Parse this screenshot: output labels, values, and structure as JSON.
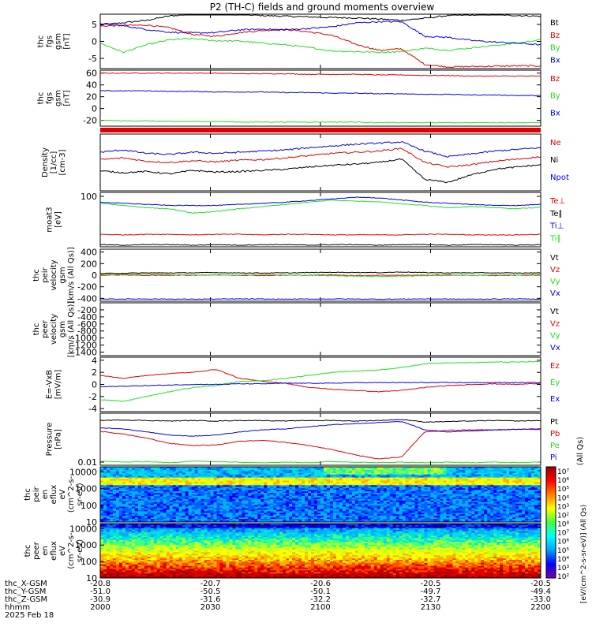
{
  "title": "P2 (TH-C) fields and ground moments overview",
  "colors": {
    "black": "#000000",
    "red": "#e00000",
    "green": "#22dd22",
    "blue": "#0000ee"
  },
  "chart_data": [
    {
      "id": "p1",
      "type": "line",
      "ylabel": [
        "thc",
        "fgs",
        "gsm",
        "[nT]"
      ],
      "yticks": [
        "5",
        "0",
        "-5"
      ],
      "ylim": [
        -8,
        8
      ],
      "series": [
        {
          "name": "Bt",
          "color": "black",
          "values": [
            4.8,
            5.5,
            6.2,
            7.5,
            8.0,
            8.1,
            7.9,
            7.6,
            7.4,
            7.2,
            7.0,
            6.9,
            6.6,
            6.2,
            6.8,
            7.6,
            7.8,
            7.9,
            7.6,
            7.4
          ]
        },
        {
          "name": "Bz",
          "color": "red",
          "values": [
            4.5,
            4.7,
            4.8,
            4.0,
            2.0,
            1.5,
            2.6,
            3.2,
            3.5,
            2.8,
            1.8,
            -0.8,
            -2.6,
            -2.2,
            -6.8,
            -7.5,
            -7.4,
            -7.3,
            -7.2,
            -7.2
          ]
        },
        {
          "name": "By",
          "color": "green",
          "values": [
            -0.5,
            -3.2,
            -1.0,
            0.5,
            0.8,
            0.2,
            0.1,
            -0.5,
            -1.0,
            -1.8,
            -2.8,
            -3.0,
            -3.2,
            -3.0,
            -2.0,
            -2.6,
            -1.9,
            -1.2,
            -0.5,
            0.5
          ]
        },
        {
          "name": "Bx",
          "color": "blue",
          "values": [
            5.3,
            4.6,
            3.5,
            2.7,
            2.5,
            2.6,
            3.4,
            3.6,
            3.4,
            3.8,
            4.3,
            5.4,
            5.8,
            5.8,
            1.5,
            1.2,
            0.3,
            -0.2,
            -0.5,
            -1.0
          ]
        }
      ]
    },
    {
      "id": "p2",
      "type": "line",
      "ylabel": [
        "thc",
        "fgs",
        "gsm",
        "[nT]"
      ],
      "yticks": [
        "60",
        "40",
        "20",
        "0",
        "-20"
      ],
      "ylim": [
        -30,
        65
      ],
      "series": [
        {
          "name": "Bz",
          "color": "red",
          "values": [
            60,
            60,
            60,
            60,
            60,
            60,
            59,
            59,
            59,
            58,
            58,
            58,
            57,
            57,
            56,
            56,
            55,
            55,
            55,
            55
          ]
        },
        {
          "name": "By",
          "color": "green",
          "values": [
            -20,
            -21,
            -21,
            -22,
            -22,
            -22,
            -23,
            -23,
            -23,
            -23,
            -23,
            -23,
            -24,
            -24,
            -24,
            -24,
            -24,
            -24,
            -24,
            -24
          ]
        },
        {
          "name": "Bx",
          "color": "blue",
          "values": [
            30,
            30,
            30,
            29,
            29,
            28,
            28,
            28,
            27,
            27,
            26,
            26,
            25,
            25,
            24,
            24,
            23,
            23,
            22,
            22
          ]
        }
      ]
    },
    {
      "id": "p3",
      "type": "line",
      "ylabel": [
        "Density",
        "[1/cc]",
        "[cm-3]"
      ],
      "yticks": [],
      "ylim": [
        0,
        10
      ],
      "series": [
        {
          "name": "Ne",
          "color": "red",
          "values": [
            5.5,
            5.8,
            5.2,
            5.0,
            5.3,
            5.1,
            5.4,
            5.5,
            5.8,
            6.2,
            6.6,
            6.8,
            7.0,
            7.5,
            5.0,
            4.2,
            4.6,
            5.2,
            5.6,
            6.0
          ]
        },
        {
          "name": "Ni",
          "color": "black",
          "values": [
            3.5,
            3.2,
            3.4,
            3.0,
            3.6,
            3.3,
            3.4,
            3.6,
            3.8,
            4.2,
            4.5,
            4.7,
            5.0,
            5.6,
            2.0,
            1.5,
            2.8,
            3.8,
            4.2,
            4.6
          ]
        },
        {
          "name": "Npot",
          "color": "blue",
          "values": [
            6.8,
            7.2,
            6.6,
            6.4,
            6.8,
            6.6,
            6.8,
            7.0,
            7.2,
            7.6,
            7.9,
            8.2,
            8.4,
            8.6,
            7.0,
            6.0,
            6.5,
            7.0,
            7.3,
            7.6
          ]
        }
      ]
    },
    {
      "id": "p4",
      "type": "line",
      "ylabel": [
        "moat3",
        "[eV]"
      ],
      "yticks": [
        "100"
      ],
      "ylim": [
        0,
        10
      ],
      "series": [
        {
          "name": "Te⊥",
          "color": "red",
          "values": [
            2.3,
            2.2,
            2.3,
            2.3,
            2.2,
            2.3,
            2.3,
            2.2,
            2.3,
            2.3,
            2.2,
            2.2,
            2.2,
            2.2,
            2.3,
            2.3,
            2.2,
            2.2,
            2.2,
            2.3
          ]
        },
        {
          "name": "Te∥",
          "color": "black",
          "values": [
            0.4,
            0.3,
            0.4,
            0.4,
            0.3,
            0.4,
            0.3,
            0.4,
            0.4,
            0.3,
            0.4,
            0.4,
            0.3,
            0.4,
            0.4,
            0.3,
            0.4,
            0.4,
            0.3,
            0.4
          ]
        },
        {
          "name": "Ti⊥",
          "color": "blue",
          "values": [
            8.2,
            8.0,
            7.8,
            7.6,
            7.6,
            7.6,
            7.8,
            8.0,
            8.2,
            8.5,
            8.8,
            9.1,
            9.0,
            8.6,
            8.2,
            8.0,
            7.8,
            7.6,
            7.6,
            7.8
          ]
        },
        {
          "name": "Ti∥",
          "color": "green",
          "values": [
            8.0,
            7.6,
            7.2,
            7.0,
            6.2,
            6.5,
            7.0,
            7.4,
            7.8,
            8.2,
            8.6,
            8.4,
            8.3,
            7.9,
            7.6,
            7.2,
            7.4,
            7.2,
            7.0,
            7.3
          ]
        }
      ]
    },
    {
      "id": "p5",
      "type": "line",
      "ylabel": [
        "thc",
        "peir",
        "velocity",
        "gsm",
        "[km/s (All Qs)]"
      ],
      "yticks": [
        "400",
        "200",
        "0",
        "-200",
        "-400"
      ],
      "ylim": [
        -450,
        450
      ],
      "series": [
        {
          "name": "Vt",
          "color": "black",
          "values": [
            30,
            35,
            40,
            40,
            42,
            45,
            40,
            38,
            40,
            45,
            50,
            48,
            45,
            55,
            45,
            40,
            42,
            40,
            38,
            40
          ]
        },
        {
          "name": "Vz",
          "color": "red",
          "values": [
            0,
            5,
            -5,
            0,
            0,
            5,
            0,
            -5,
            0,
            0,
            5,
            -5,
            0,
            0,
            0,
            5,
            0,
            -5,
            0,
            0
          ]
        },
        {
          "name": "Vy",
          "color": "green",
          "values": [
            10,
            15,
            20,
            10,
            5,
            0,
            5,
            10,
            5,
            0,
            -10,
            -15,
            -20,
            -15,
            -10,
            -5,
            0,
            5,
            5,
            10
          ]
        },
        {
          "name": "Vx",
          "color": "blue",
          "values": [
            -410,
            -412,
            -410,
            -412,
            -414,
            -412,
            -410,
            -412,
            -414,
            -412,
            -410,
            -412,
            -414,
            -412,
            -410,
            -412,
            -414,
            -412,
            -410,
            -412
          ]
        }
      ]
    },
    {
      "id": "p6",
      "type": "line",
      "ylabel": [
        "thc",
        "peer",
        "velocity",
        "gsm",
        "[km/s (All Qs)]"
      ],
      "yticks": [
        "-200",
        "-400",
        "-600",
        "-800",
        "-1000",
        "-1200",
        "-1400"
      ],
      "ylim": [
        -1500,
        0
      ],
      "series": [
        {
          "name": "Vt",
          "color": "black",
          "values": []
        },
        {
          "name": "Vz",
          "color": "red",
          "values": []
        },
        {
          "name": "Vy",
          "color": "green",
          "values": []
        },
        {
          "name": "Vx",
          "color": "blue",
          "values": []
        }
      ]
    },
    {
      "id": "p7",
      "type": "line",
      "ylabel": [
        "E=-VxB",
        "[mV/m]"
      ],
      "yticks": [
        "4",
        "2",
        "0",
        "-2",
        "-4"
      ],
      "ylim": [
        -4.5,
        4.5
      ],
      "series": [
        {
          "name": "Ez",
          "color": "red",
          "values": [
            1.5,
            1.0,
            1.5,
            1.8,
            2.0,
            2.5,
            1.0,
            0.5,
            0.2,
            -0.5,
            -0.8,
            -1.0,
            -1.2,
            -1.0,
            -0.5,
            -0.2,
            0.0,
            0.1,
            0.0,
            0.2
          ]
        },
        {
          "name": "Ey",
          "color": "green",
          "values": [
            -2.5,
            -2.8,
            -2.0,
            -1.2,
            -0.5,
            -0.2,
            0.5,
            0.6,
            1.0,
            1.5,
            2.0,
            2.2,
            2.4,
            2.8,
            3.4,
            3.6,
            3.6,
            3.7,
            3.7,
            3.8
          ]
        },
        {
          "name": "Ex",
          "color": "blue",
          "values": [
            -0.4,
            -0.3,
            -0.2,
            -0.1,
            0.0,
            0.0,
            0.1,
            0.1,
            0.2,
            0.2,
            0.2,
            0.3,
            0.3,
            0.3,
            0.3,
            0.3,
            0.3,
            0.3,
            0.3,
            0.3
          ]
        }
      ]
    },
    {
      "id": "p8",
      "type": "line",
      "ylabel": [
        "Pressure",
        "[nPa]"
      ],
      "yticks": [
        "0.01"
      ],
      "ylim": [
        0,
        10
      ],
      "units_right": "(All Qs)",
      "series": [
        {
          "name": "Pt",
          "color": "black",
          "values": [
            8.6,
            8.7,
            8.6,
            8.5,
            8.6,
            8.5,
            8.6,
            8.6,
            8.5,
            8.6,
            8.6,
            8.5,
            8.6,
            8.8,
            8.3,
            8.4,
            8.5,
            8.6,
            8.5,
            8.6
          ]
        },
        {
          "name": "Pb",
          "color": "red",
          "values": [
            6.5,
            6.0,
            5.2,
            4.2,
            3.8,
            3.9,
            4.6,
            4.8,
            4.4,
            3.8,
            3.0,
            2.0,
            1.2,
            1.6,
            6.4,
            6.7,
            6.8,
            6.8,
            6.9,
            6.9
          ]
        },
        {
          "name": "Pe",
          "color": "green",
          "values": [
            0.8,
            0.6,
            0.7,
            0.5,
            0.8,
            0.7,
            0.6,
            0.5,
            0.6,
            0.5,
            0.7,
            0.6,
            0.5,
            0.6,
            0.5,
            0.6,
            0.5,
            0.6,
            0.5,
            0.6
          ]
        },
        {
          "name": "Pi",
          "color": "blue",
          "values": [
            7.2,
            7.0,
            6.4,
            5.8,
            5.6,
            5.8,
            6.4,
            6.8,
            7.0,
            7.4,
            7.8,
            8.0,
            8.2,
            8.4,
            6.8,
            6.4,
            6.6,
            6.8,
            6.9,
            7.0
          ]
        }
      ]
    },
    {
      "id": "p9",
      "type": "heatmap",
      "ylabel": [
        "thc",
        "peir",
        "en",
        "eflux",
        "eV",
        "(cm^2-s-",
        "sr-eV)"
      ],
      "yticks": [
        "10000",
        "1000",
        "100",
        "10"
      ],
      "ylim": [
        10,
        20000
      ]
    },
    {
      "id": "p10",
      "type": "heatmap",
      "ylabel": [
        "thc",
        "peer",
        "en",
        "eflux",
        "eV",
        "(cm^2-s-",
        "sr-eV)"
      ],
      "yticks": [
        "10000",
        "1000",
        "100",
        "10"
      ],
      "ylim": [
        10,
        20000
      ]
    }
  ],
  "colorbar": {
    "ticks": [
      "10⁷",
      "10⁶",
      "10⁵",
      "10⁴",
      "10³",
      "10²",
      "10⁸",
      "10⁷",
      "10⁶",
      "10⁵",
      "10⁴",
      "10³",
      "10²"
    ],
    "label": "[eV/(cm^2-s-sr-eV)]  (All Qs)"
  },
  "xaxis": {
    "rows": [
      {
        "label": "thc_X-GSM",
        "values": [
          "-20.8",
          "-20.7",
          "-20.6",
          "-20.5",
          "-20.5"
        ]
      },
      {
        "label": "thc_Y-GSM",
        "values": [
          "-51.0",
          "-50.5",
          "-50.1",
          "-49.7",
          "-49.4"
        ]
      },
      {
        "label": "thc_Z-GSM",
        "values": [
          "-30.9",
          "-31.6",
          "-32.2",
          "-32.7",
          "-33.0"
        ]
      },
      {
        "label": "hhmm",
        "values": [
          "2000",
          "2030",
          "2100",
          "2130",
          "2200"
        ]
      }
    ],
    "date": "2025 Feb 18"
  }
}
